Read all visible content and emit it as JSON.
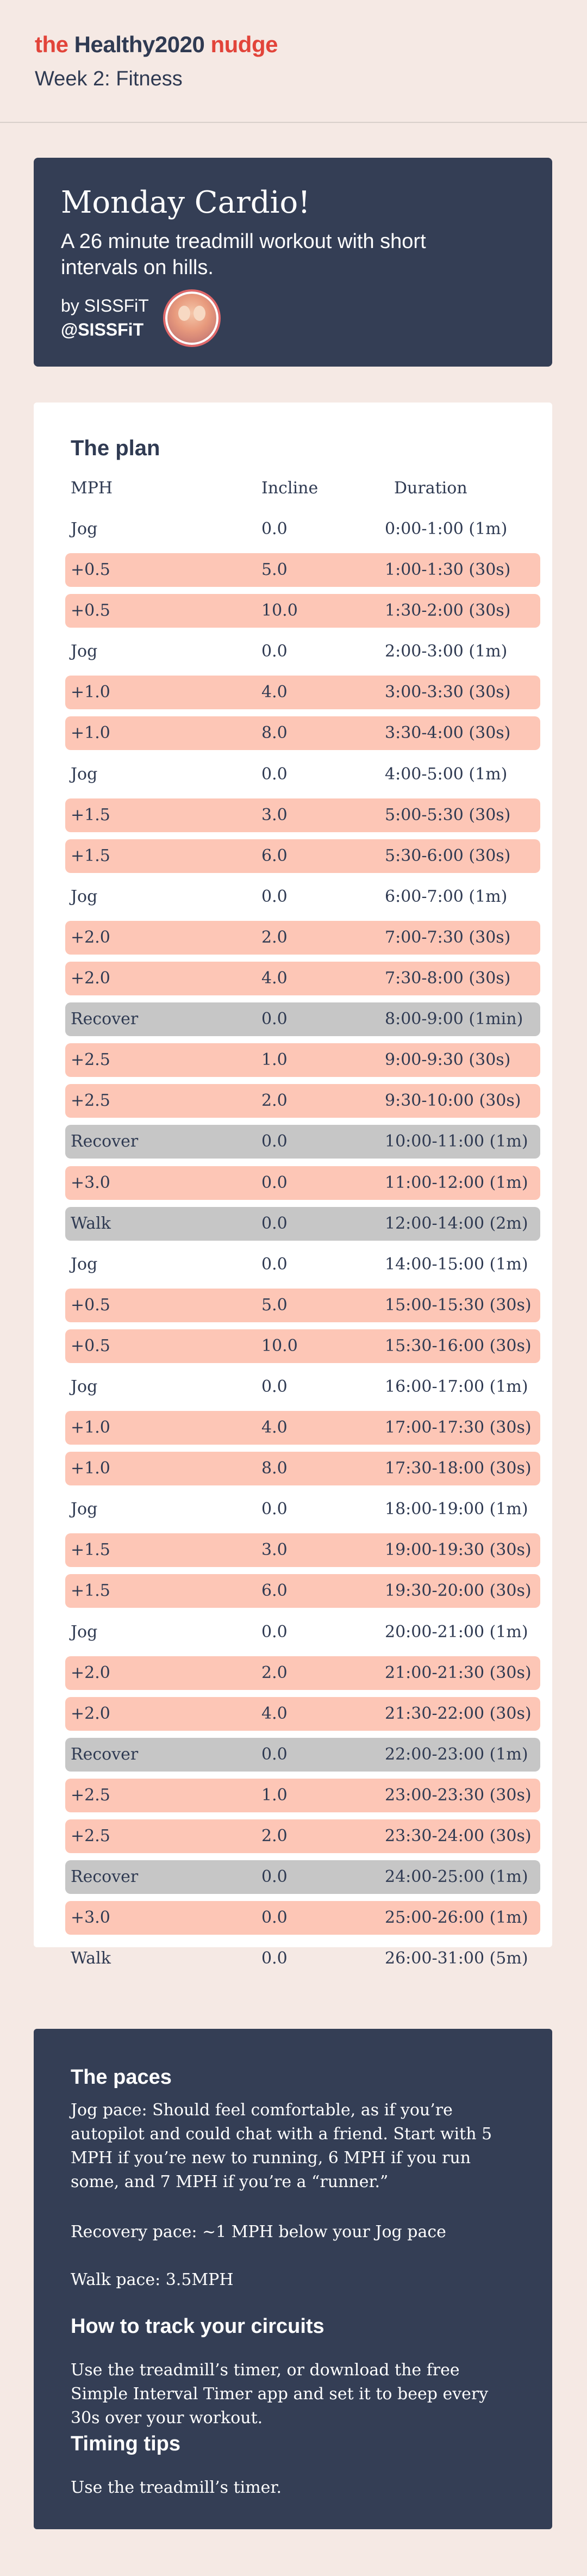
{
  "header": {
    "brand_prefix": "the",
    "brand_name": "Healthy2020",
    "brand_suffix": "nudge",
    "week": "Week 2: Fitness"
  },
  "hero": {
    "title": "Monday Cardio!",
    "subtitle": "A 26 minute treadmill workout with short intervals on hills.",
    "by_line": "by SISSFiT",
    "handle": "@SISSFiT"
  },
  "plan": {
    "title": "The plan",
    "col_mph": "MPH",
    "col_incline": "Incline",
    "col_duration": "Duration",
    "rows": [
      {
        "mph": "Jog",
        "incline": "0.0",
        "duration": "0:00-1:00 (1m)",
        "kind": "jog"
      },
      {
        "mph": "+0.5",
        "incline": "5.0",
        "duration": "1:00-1:30 (30s)",
        "kind": "interval"
      },
      {
        "mph": "+0.5",
        "incline": "10.0",
        "duration": "1:30-2:00 (30s)",
        "kind": "interval"
      },
      {
        "mph": "Jog",
        "incline": "0.0",
        "duration": "2:00-3:00 (1m)",
        "kind": "jog"
      },
      {
        "mph": "+1.0",
        "incline": "4.0",
        "duration": "3:00-3:30 (30s)",
        "kind": "interval"
      },
      {
        "mph": "+1.0",
        "incline": "8.0",
        "duration": "3:30-4:00 (30s)",
        "kind": "interval"
      },
      {
        "mph": "Jog",
        "incline": "0.0",
        "duration": "4:00-5:00 (1m)",
        "kind": "jog"
      },
      {
        "mph": "+1.5",
        "incline": "3.0",
        "duration": "5:00-5:30 (30s)",
        "kind": "interval"
      },
      {
        "mph": "+1.5",
        "incline": "6.0",
        "duration": "5:30-6:00 (30s)",
        "kind": "interval"
      },
      {
        "mph": "Jog",
        "incline": "0.0",
        "duration": "6:00-7:00 (1m)",
        "kind": "jog"
      },
      {
        "mph": "+2.0",
        "incline": "2.0",
        "duration": "7:00-7:30 (30s)",
        "kind": "interval"
      },
      {
        "mph": "+2.0",
        "incline": "4.0",
        "duration": "7:30-8:00 (30s)",
        "kind": "interval"
      },
      {
        "mph": "Recover",
        "incline": "0.0",
        "duration": "8:00-9:00 (1min)",
        "kind": "recover"
      },
      {
        "mph": "+2.5",
        "incline": "1.0",
        "duration": "9:00-9:30 (30s)",
        "kind": "interval"
      },
      {
        "mph": "+2.5",
        "incline": "2.0",
        "duration": "9:30-10:00 (30s)",
        "kind": "interval"
      },
      {
        "mph": "Recover",
        "incline": "0.0",
        "duration": "10:00-11:00 (1m)",
        "kind": "recover"
      },
      {
        "mph": "+3.0",
        "incline": "0.0",
        "duration": "11:00-12:00 (1m)",
        "kind": "interval"
      },
      {
        "mph": "Walk",
        "incline": "0.0",
        "duration": "12:00-14:00 (2m)",
        "kind": "recover"
      },
      {
        "mph": "Jog",
        "incline": "0.0",
        "duration": "14:00-15:00 (1m)",
        "kind": "jog"
      },
      {
        "mph": "+0.5",
        "incline": "5.0",
        "duration": "15:00-15:30 (30s)",
        "kind": "interval"
      },
      {
        "mph": "+0.5",
        "incline": "10.0",
        "duration": "15:30-16:00 (30s)",
        "kind": "interval"
      },
      {
        "mph": "Jog",
        "incline": "0.0",
        "duration": "16:00-17:00 (1m)",
        "kind": "jog"
      },
      {
        "mph": "+1.0",
        "incline": "4.0",
        "duration": "17:00-17:30 (30s)",
        "kind": "interval"
      },
      {
        "mph": "+1.0",
        "incline": "8.0",
        "duration": "17:30-18:00 (30s)",
        "kind": "interval"
      },
      {
        "mph": "Jog",
        "incline": "0.0",
        "duration": "18:00-19:00 (1m)",
        "kind": "jog"
      },
      {
        "mph": "+1.5",
        "incline": "3.0",
        "duration": "19:00-19:30 (30s)",
        "kind": "interval"
      },
      {
        "mph": "+1.5",
        "incline": "6.0",
        "duration": "19:30-20:00 (30s)",
        "kind": "interval"
      },
      {
        "mph": "Jog",
        "incline": "0.0",
        "duration": "20:00-21:00 (1m)",
        "kind": "jog"
      },
      {
        "mph": "+2.0",
        "incline": "2.0",
        "duration": "21:00-21:30 (30s)",
        "kind": "interval"
      },
      {
        "mph": "+2.0",
        "incline": "4.0",
        "duration": "21:30-22:00 (30s)",
        "kind": "interval"
      },
      {
        "mph": "Recover",
        "incline": "0.0",
        "duration": "22:00-23:00 (1m)",
        "kind": "recover"
      },
      {
        "mph": "+2.5",
        "incline": "1.0",
        "duration": "23:00-23:30 (30s)",
        "kind": "interval"
      },
      {
        "mph": "+2.5",
        "incline": "2.0",
        "duration": "23:30-24:00 (30s)",
        "kind": "interval"
      },
      {
        "mph": "Recover",
        "incline": "0.0",
        "duration": "24:00-25:00 (1m)",
        "kind": "recover"
      },
      {
        "mph": "+3.0",
        "incline": "0.0",
        "duration": "25:00-26:00 (1m)",
        "kind": "interval"
      },
      {
        "mph": "Walk",
        "incline": "0.0",
        "duration": "26:00-31:00 (5m)",
        "kind": "jog"
      }
    ]
  },
  "info": {
    "paces_title": "The paces",
    "jog_pace": "Jog pace: Should feel comfortable, as if you’re autopilot and could chat with a friend. Start with 5 MPH if you’re new to running, 6 MPH if you run some, and 7 MPH if you’re a “runner.”",
    "recovery_pace": "Recovery pace: ~1 MPH below your Jog pace",
    "walk_pace": "Walk pace: 3.5MPH",
    "track_title": "How to track your circuits",
    "track_text": "Use the treadmill’s timer, or download the free Simple Interval Timer app and set it to beep every 30s over your workout.",
    "tips_title": "Timing tips",
    "tips_text": "Use the treadmill’s timer."
  },
  "colors": {
    "background": "#f5e9e4",
    "navy": "#343e55",
    "brand_red": "#e2443a",
    "interval_row": "#fdc6b6",
    "recover_row": "#c6c6c6"
  }
}
